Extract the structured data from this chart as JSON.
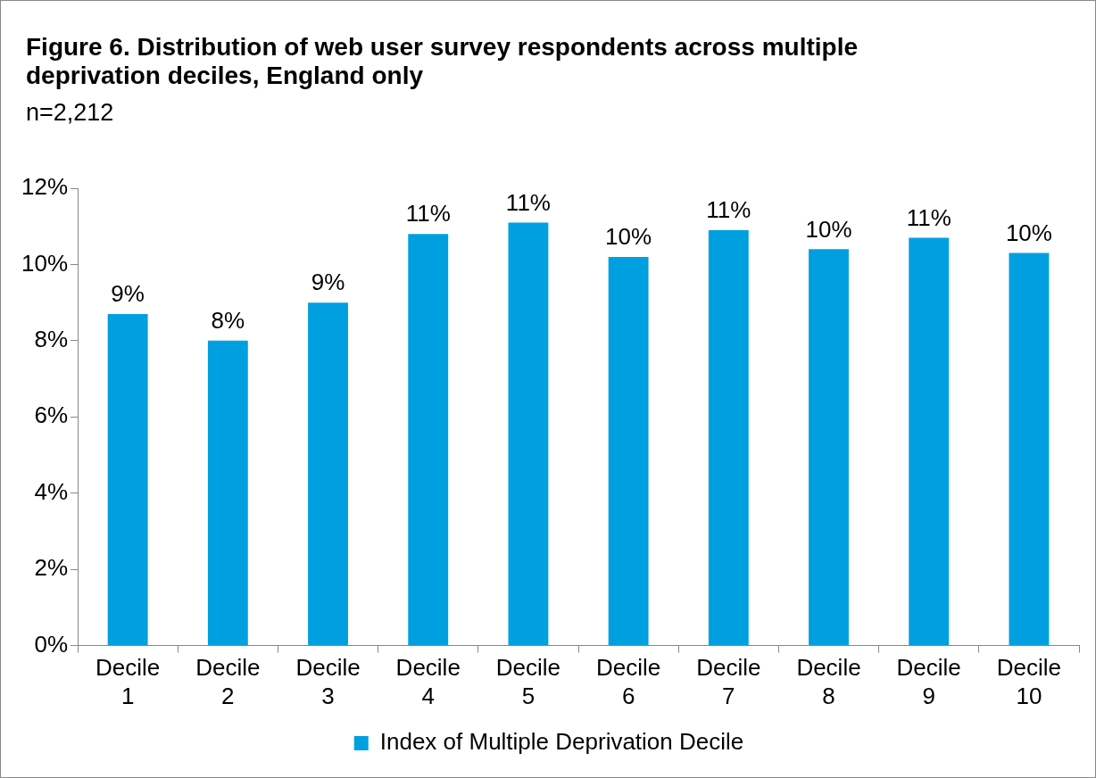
{
  "chart_data": {
    "type": "bar",
    "title": "Figure 6. Distribution of web user survey respondents across multiple deprivation deciles, England only",
    "subtitle": "n=2,212",
    "categories": [
      "Decile 1",
      "Decile 2",
      "Decile 3",
      "Decile 4",
      "Decile 5",
      "Decile 6",
      "Decile 7",
      "Decile 8",
      "Decile 9",
      "Decile 10"
    ],
    "series": [
      {
        "name": "Index of Multiple Deprivation Decile",
        "color": "#00a0e0",
        "values": [
          8.7,
          8.0,
          9.0,
          10.8,
          11.1,
          10.2,
          10.9,
          10.4,
          10.7,
          10.3
        ],
        "value_labels": [
          "9%",
          "8%",
          "9%",
          "11%",
          "11%",
          "10%",
          "11%",
          "10%",
          "11%",
          "10%"
        ]
      }
    ],
    "ylim": [
      0,
      12
    ],
    "yticks": [
      {
        "value": 0,
        "label": "0%"
      },
      {
        "value": 2,
        "label": "2%"
      },
      {
        "value": 4,
        "label": "4%"
      },
      {
        "value": 6,
        "label": "6%"
      },
      {
        "value": 8,
        "label": "8%"
      },
      {
        "value": 10,
        "label": "10%"
      },
      {
        "value": 12,
        "label": "12%"
      }
    ],
    "grid": false,
    "legend": "bottom"
  }
}
